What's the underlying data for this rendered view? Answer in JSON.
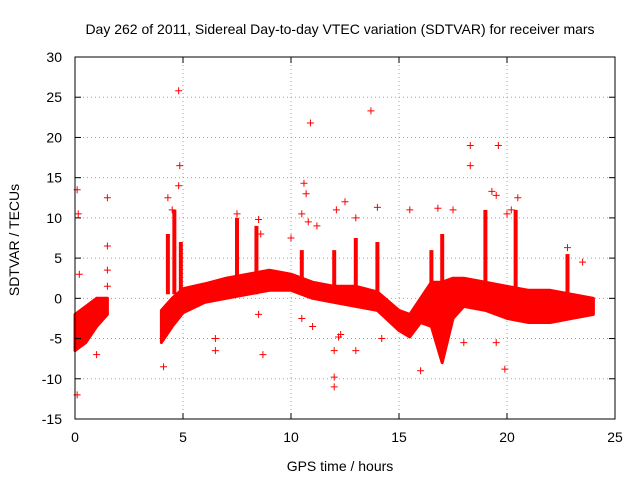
{
  "colors": {
    "series": "#ff0000",
    "grid": "#a0a0a0",
    "axis": "#000000",
    "background": "#ffffff"
  },
  "chart_data": {
    "type": "scatter",
    "title": "Day 262 of 2011, Sidereal Day-to-day VTEC variation (SDTVAR) for receiver mars",
    "xlabel": "GPS time / hours",
    "ylabel": "SDTVAR / TECUs",
    "xlim": [
      0,
      25
    ],
    "ylim": [
      -15,
      30
    ],
    "xticks": [
      0,
      5,
      10,
      15,
      20,
      25
    ],
    "yticks": [
      -15,
      -10,
      -5,
      0,
      5,
      10,
      15,
      20,
      25,
      30
    ],
    "grid": true,
    "marker": "+",
    "series": [
      {
        "name": "SDTVAR",
        "band": {
          "x": [
            0.0,
            0.5,
            1.0,
            1.5,
            4.0,
            4.5,
            5.0,
            6.0,
            7.0,
            8.0,
            9.0,
            10.0,
            11.0,
            12.0,
            13.0,
            14.0,
            15.0,
            15.5,
            16.0,
            16.5,
            17.0,
            17.5,
            18.0,
            19.0,
            20.0,
            21.0,
            22.0,
            23.0,
            24.0
          ],
          "lower": [
            -6.5,
            -5.5,
            -3.5,
            -2.0,
            -5.5,
            -3.5,
            -1.8,
            -0.5,
            0.0,
            0.5,
            1.0,
            1.0,
            0.0,
            -0.5,
            -1.0,
            -1.5,
            -4.0,
            -4.8,
            -3.0,
            -3.5,
            -8.0,
            -2.5,
            -1.0,
            -1.5,
            -2.5,
            -3.0,
            -3.0,
            -2.5,
            -2.0
          ],
          "upper": [
            -2.0,
            -1.0,
            0.0,
            0.0,
            -1.5,
            0.0,
            1.2,
            1.8,
            2.5,
            3.0,
            3.5,
            3.0,
            2.0,
            1.5,
            1.5,
            0.8,
            -1.5,
            -2.0,
            0.0,
            2.0,
            2.0,
            2.5,
            2.5,
            2.0,
            1.5,
            1.0,
            1.0,
            0.5,
            0.0
          ]
        },
        "spikes": [
          [
            4.3,
            8
          ],
          [
            4.6,
            11
          ],
          [
            4.9,
            7
          ],
          [
            7.5,
            10
          ],
          [
            8.4,
            9
          ],
          [
            10.5,
            6
          ],
          [
            12.0,
            6
          ],
          [
            13.0,
            7.5
          ],
          [
            14.0,
            7
          ],
          [
            16.5,
            6
          ],
          [
            17.0,
            8
          ],
          [
            19.0,
            11
          ],
          [
            20.4,
            11
          ],
          [
            22.8,
            5.5
          ]
        ],
        "points": [
          [
            0.1,
            13.5
          ],
          [
            0.15,
            10.5
          ],
          [
            0.2,
            3.0
          ],
          [
            0.1,
            -12.0
          ],
          [
            1.0,
            -7.0
          ],
          [
            1.5,
            12.5
          ],
          [
            1.5,
            6.5
          ],
          [
            1.5,
            3.5
          ],
          [
            1.5,
            1.5
          ],
          [
            4.1,
            -8.5
          ],
          [
            4.3,
            12.5
          ],
          [
            4.5,
            11.0
          ],
          [
            4.8,
            14.0
          ],
          [
            4.85,
            16.5
          ],
          [
            4.8,
            25.8
          ],
          [
            6.5,
            -5.0
          ],
          [
            6.5,
            -6.5
          ],
          [
            7.5,
            10.5
          ],
          [
            8.5,
            9.8
          ],
          [
            8.6,
            8.0
          ],
          [
            8.5,
            -2.0
          ],
          [
            8.7,
            -7.0
          ],
          [
            10.0,
            7.5
          ],
          [
            10.6,
            14.3
          ],
          [
            10.7,
            13.0
          ],
          [
            10.5,
            10.5
          ],
          [
            10.8,
            9.5
          ],
          [
            10.5,
            -2.5
          ],
          [
            11.0,
            -3.5
          ],
          [
            10.9,
            21.8
          ],
          [
            11.2,
            9.0
          ],
          [
            12.0,
            -6.5
          ],
          [
            12.0,
            -9.8
          ],
          [
            12.0,
            -11.0
          ],
          [
            12.2,
            -4.8
          ],
          [
            12.3,
            -4.5
          ],
          [
            12.1,
            11.0
          ],
          [
            12.5,
            12.0
          ],
          [
            13.0,
            -6.5
          ],
          [
            13.0,
            10.0
          ],
          [
            13.7,
            23.3
          ],
          [
            14.0,
            11.3
          ],
          [
            14.2,
            -5.0
          ],
          [
            15.5,
            11.0
          ],
          [
            16.0,
            -9.0
          ],
          [
            16.8,
            11.2
          ],
          [
            16.9,
            -5.0
          ],
          [
            17.5,
            11.0
          ],
          [
            18.0,
            -5.5
          ],
          [
            18.3,
            19.0
          ],
          [
            18.3,
            16.5
          ],
          [
            19.3,
            13.3
          ],
          [
            19.5,
            12.8
          ],
          [
            19.6,
            19.0
          ],
          [
            19.5,
            -5.5
          ],
          [
            20.0,
            10.5
          ],
          [
            20.2,
            11.0
          ],
          [
            20.5,
            12.5
          ],
          [
            19.9,
            -8.8
          ],
          [
            22.8,
            6.3
          ],
          [
            23.5,
            4.5
          ]
        ]
      }
    ]
  }
}
